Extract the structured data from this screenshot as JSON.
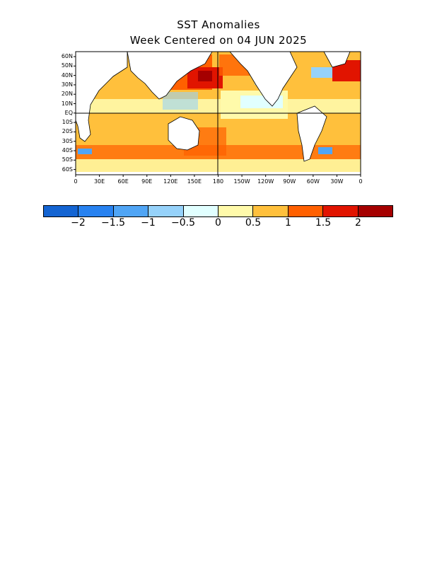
{
  "title": "SST Anomalies",
  "subtitle": "Week Centered on 04 JUN 2025",
  "lat_labels": [
    "60N",
    "50N",
    "40N",
    "30N",
    "20N",
    "10N",
    "EQ",
    "10S",
    "20S",
    "30S",
    "40S",
    "50S",
    "60S"
  ],
  "lon_labels": [
    "0",
    "30E",
    "60E",
    "90E",
    "120E",
    "150E",
    "180",
    "150W",
    "120W",
    "90W",
    "60W",
    "30W",
    "0"
  ],
  "colorbar": {
    "colors": [
      "#1464d2",
      "#2882f0",
      "#50a5f5",
      "#96d2fa",
      "#e1ffff",
      "#fffaaa",
      "#ffc03c",
      "#ff6000",
      "#e11400",
      "#a50000"
    ],
    "labels": [
      "−2",
      "−1.5",
      "−1",
      "−0.5",
      "0",
      "0.5",
      "1",
      "1.5",
      "2"
    ],
    "values": [
      -2,
      -1.5,
      -1,
      -0.5,
      0,
      0.5,
      1,
      1.5,
      2
    ]
  },
  "map": {
    "lat_range": [
      -70,
      70
    ],
    "lon_range": [
      0,
      360
    ],
    "land_color": "#ffffff",
    "coast_color": "#000000"
  }
}
